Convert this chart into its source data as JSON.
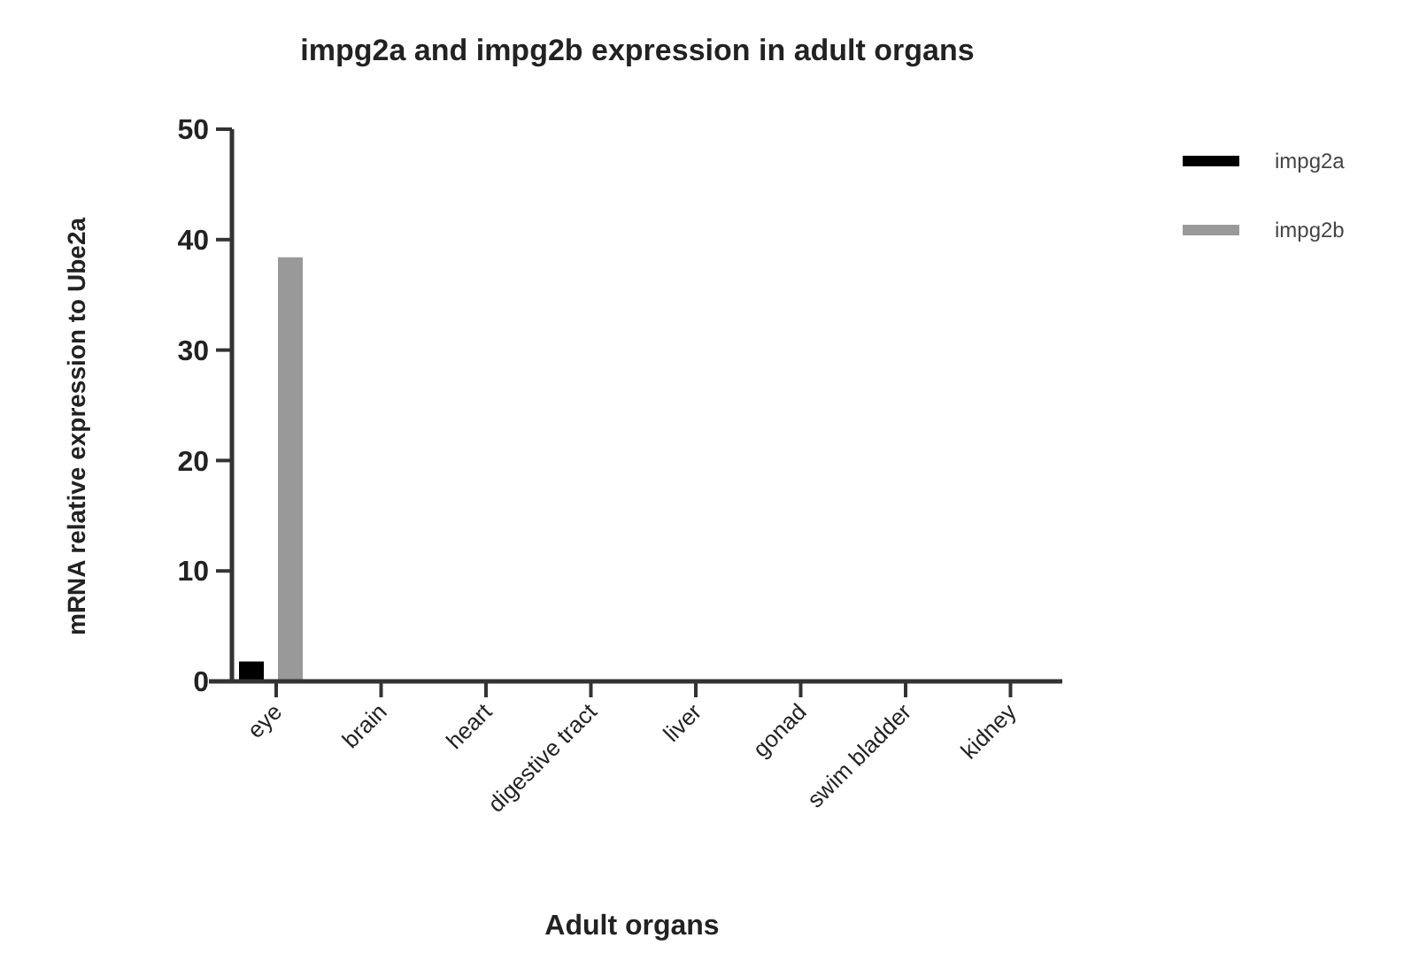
{
  "chart_data": {
    "type": "bar",
    "title": "impg2a and impg2b expression in adult organs",
    "xlabel": "Adult organs",
    "ylabel": "mRNA relative expression to Ube2a",
    "categories": [
      "eye",
      "brain",
      "heart",
      "digestive tract",
      "liver",
      "gonad",
      "swim bladder",
      "kidney"
    ],
    "series": [
      {
        "name": "impg2a",
        "color": "#000000",
        "values": [
          1.8,
          0,
          0,
          0,
          0,
          0,
          0,
          0
        ]
      },
      {
        "name": "impg2b",
        "color": "#999999",
        "values": [
          38.4,
          0,
          0,
          0,
          0,
          0,
          0,
          0
        ]
      }
    ],
    "ylim": [
      0,
      50
    ],
    "yticks": [
      0,
      10,
      20,
      30,
      40,
      50
    ],
    "grid": false,
    "legend": "top right"
  }
}
